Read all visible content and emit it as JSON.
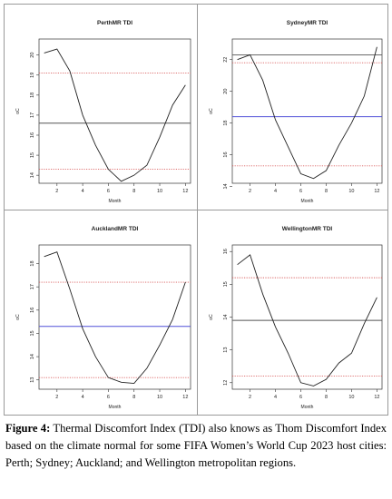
{
  "chart_data": [
    {
      "type": "line",
      "title": "PerthMR TDI",
      "xlabel": "Month",
      "ylabel": "oC",
      "x": [
        1,
        2,
        3,
        4,
        5,
        6,
        7,
        8,
        9,
        10,
        11,
        12
      ],
      "values": [
        20.1,
        20.3,
        19.2,
        17.0,
        15.5,
        14.3,
        13.7,
        14.0,
        14.5,
        15.9,
        17.5,
        18.5
      ],
      "xlim": [
        0.6,
        12.4
      ],
      "ylim": [
        13.6,
        20.8
      ],
      "xticks": [
        2,
        4,
        6,
        8,
        10,
        12
      ],
      "yticks": [
        14,
        15,
        16,
        17,
        18,
        19,
        20
      ],
      "refs": [
        {
          "value": 19.1,
          "color": "#d95f5f",
          "style": "dotted"
        },
        {
          "value": 16.6,
          "color": "#555555",
          "style": "solid"
        },
        {
          "value": 14.3,
          "color": "#d95f5f",
          "style": "dotted"
        }
      ]
    },
    {
      "type": "line",
      "title": "SydneyMR TDI",
      "xlabel": "Month",
      "ylabel": "oC",
      "x": [
        1,
        2,
        3,
        4,
        5,
        6,
        7,
        8,
        9,
        10,
        11,
        12
      ],
      "values": [
        22.0,
        22.3,
        20.7,
        18.2,
        16.5,
        14.8,
        14.5,
        15.0,
        16.6,
        18.0,
        19.7,
        22.8
      ],
      "xlim": [
        0.6,
        12.4
      ],
      "ylim": [
        14.2,
        23.3
      ],
      "xticks": [
        2,
        4,
        6,
        8,
        10,
        12
      ],
      "yticks": [
        14,
        16,
        18,
        20,
        22
      ],
      "refs": [
        {
          "value": 22.3,
          "color": "#555555",
          "style": "solid"
        },
        {
          "value": 21.8,
          "color": "#d95f5f",
          "style": "dotted"
        },
        {
          "value": 18.4,
          "color": "#5050d8",
          "style": "solid"
        },
        {
          "value": 15.3,
          "color": "#d95f5f",
          "style": "dotted"
        }
      ]
    },
    {
      "type": "line",
      "title": "AucklandMR TDI",
      "xlabel": "Month",
      "ylabel": "oC",
      "x": [
        1,
        2,
        3,
        4,
        5,
        6,
        7,
        8,
        9,
        10,
        11,
        12
      ],
      "values": [
        18.3,
        18.5,
        16.9,
        15.2,
        14.0,
        13.1,
        12.9,
        12.85,
        13.5,
        14.5,
        15.6,
        17.2
      ],
      "xlim": [
        0.6,
        12.4
      ],
      "ylim": [
        12.6,
        18.8
      ],
      "xticks": [
        2,
        4,
        6,
        8,
        10,
        12
      ],
      "yticks": [
        13,
        14,
        15,
        16,
        17,
        18
      ],
      "refs": [
        {
          "value": 17.2,
          "color": "#d95f5f",
          "style": "dotted"
        },
        {
          "value": 15.3,
          "color": "#5050d8",
          "style": "solid"
        },
        {
          "value": 13.1,
          "color": "#d95f5f",
          "style": "dotted"
        }
      ]
    },
    {
      "type": "line",
      "title": "WellingtonMR TDI",
      "xlabel": "Month",
      "ylabel": "oC",
      "x": [
        1,
        2,
        3,
        4,
        5,
        6,
        7,
        8,
        9,
        10,
        11,
        12
      ],
      "values": [
        15.6,
        15.9,
        14.7,
        13.7,
        12.9,
        12.0,
        11.9,
        12.1,
        12.6,
        12.9,
        13.8,
        14.6
      ],
      "xlim": [
        0.6,
        12.4
      ],
      "ylim": [
        11.8,
        16.2
      ],
      "xticks": [
        2,
        4,
        6,
        8,
        10,
        12
      ],
      "yticks": [
        12,
        13,
        14,
        15,
        16
      ],
      "refs": [
        {
          "value": 15.2,
          "color": "#d95f5f",
          "style": "dotted"
        },
        {
          "value": 13.9,
          "color": "#555555",
          "style": "solid"
        },
        {
          "value": 12.2,
          "color": "#d95f5f",
          "style": "dotted"
        }
      ]
    }
  ],
  "caption": {
    "label": "Figure 4:",
    "text": "Thermal Discomfort Index (TDI) also knows as Thom Discomfort Index based on the climate normal for some FIFA Women’s World Cup 2023 host cities: Perth; Sydney; Auckland; and Wellington metropolitan regions."
  }
}
